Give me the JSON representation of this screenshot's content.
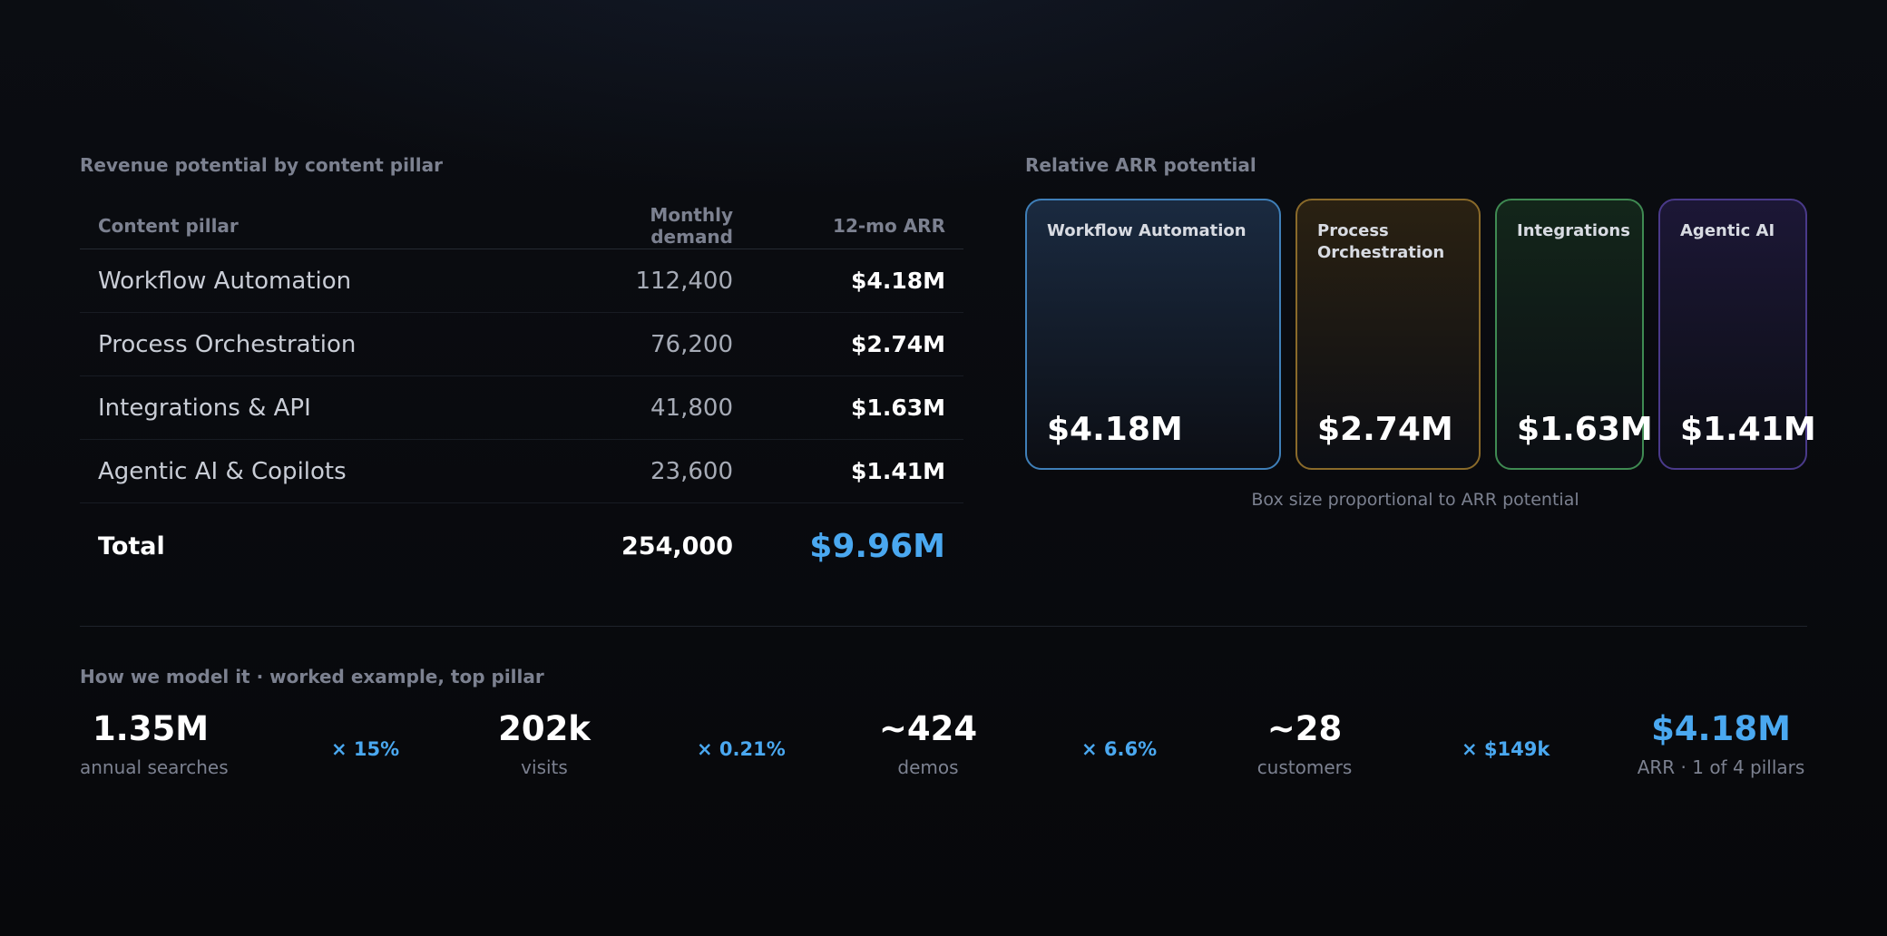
{
  "table": {
    "section_label": "Revenue potential by content pillar",
    "headers": {
      "pillar": "Content pillar",
      "demand": "Monthly demand",
      "arr": "12-mo ARR"
    },
    "rows": [
      {
        "pillar": "Workflow Automation",
        "demand": "112,400",
        "arr": "$4.18M"
      },
      {
        "pillar": "Process Orchestration",
        "demand": "76,200",
        "arr": "$2.74M"
      },
      {
        "pillar": "Integrations & API",
        "demand": "41,800",
        "arr": "$1.63M"
      },
      {
        "pillar": "Agentic AI & Copilots",
        "demand": "23,600",
        "arr": "$1.41M"
      }
    ],
    "total": {
      "label": "Total",
      "demand": "254,000",
      "arr": "$9.96M"
    }
  },
  "treemap": {
    "section_label": "Relative ARR potential",
    "boxes": [
      {
        "name": "Workflow Automation",
        "value": "$4.18M",
        "color": "#3f7fb8",
        "bg": "#1a2a40"
      },
      {
        "name": "Process Orchestration",
        "value": "$2.74M",
        "color": "#8a6a2a",
        "bg": "#2a2112"
      },
      {
        "name": "Integrations",
        "value": "$1.63M",
        "color": "#3f8a52",
        "bg": "#13261a"
      },
      {
        "name": "Agentic AI",
        "value": "$1.41M",
        "color": "#4a3a8a",
        "bg": "#1c1736"
      }
    ],
    "caption": "Box size proportional to ARR potential"
  },
  "model": {
    "section_label": "How we model it · worked example, top pillar",
    "stats": [
      {
        "value": "1.35M",
        "label": "annual searches"
      },
      {
        "value": "202k",
        "label": "visits"
      },
      {
        "value": "~424",
        "label": "demos"
      },
      {
        "value": "~28",
        "label": "customers"
      },
      {
        "value": "$4.18M",
        "label": "ARR · 1 of 4 pillars"
      }
    ],
    "multipliers": [
      "× 15%",
      "× 0.21%",
      "× 6.6%",
      "× $149k"
    ]
  }
}
